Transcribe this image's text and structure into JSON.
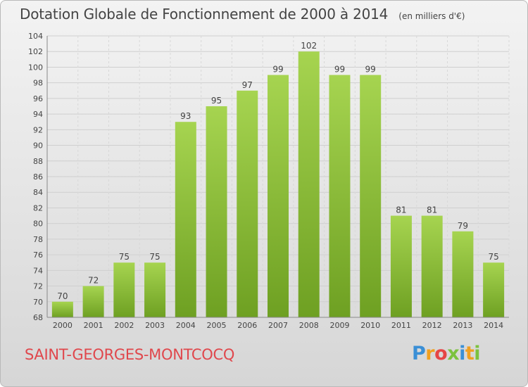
{
  "chart_data": {
    "type": "bar",
    "title": "Dotation Globale de Fonctionnement de 2000 à 2014",
    "unit": "(en milliers d'€)",
    "categories": [
      "2000",
      "2001",
      "2002",
      "2003",
      "2004",
      "2005",
      "2006",
      "2007",
      "2008",
      "2009",
      "2010",
      "2011",
      "2012",
      "2013",
      "2014"
    ],
    "values": [
      70,
      72,
      75,
      75,
      93,
      95,
      97,
      99,
      102,
      99,
      99,
      81,
      81,
      79,
      75
    ],
    "ylim": [
      68,
      104
    ],
    "yticks": [
      68,
      70,
      72,
      74,
      76,
      78,
      80,
      82,
      84,
      86,
      88,
      90,
      92,
      94,
      96,
      98,
      100,
      102,
      104
    ],
    "grid": true,
    "colors": {
      "bar_light": "#a6d450",
      "bar_dark": "#6ea022",
      "title": "#444444",
      "commune": "#e0474c"
    }
  },
  "commune": "SAINT-GEORGES-MONTCOCQ",
  "brand": {
    "letters": [
      "P",
      "r",
      "o",
      "x",
      "i",
      "t",
      "i"
    ]
  }
}
